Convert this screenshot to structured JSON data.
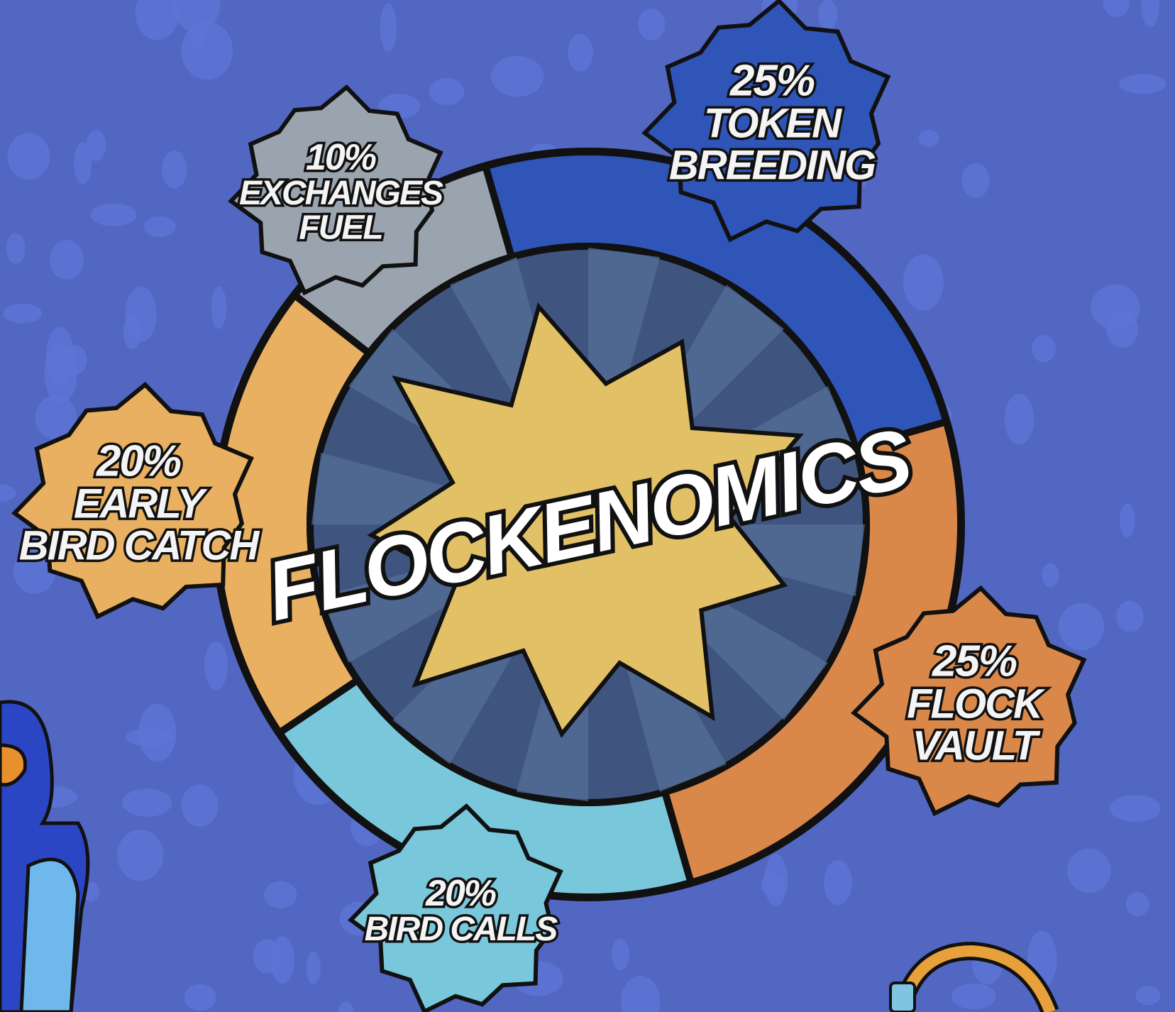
{
  "chart_data": {
    "type": "pie",
    "variant": "donut",
    "title": "FLOCKENOMICS",
    "series": [
      {
        "pct_label": "25%",
        "name": "TOKEN BREEDING",
        "lines": [
          "TOKEN",
          "BREEDING"
        ],
        "value": 25,
        "color": "#2f55b8"
      },
      {
        "pct_label": "25%",
        "name": "FLOCK VAULT",
        "lines": [
          "FLOCK",
          "VAULT"
        ],
        "value": 25,
        "color": "#d9884a"
      },
      {
        "pct_label": "20%",
        "name": "BIRD CALLS",
        "lines": [
          "BIRD CALLS"
        ],
        "value": 20,
        "color": "#79c7db"
      },
      {
        "pct_label": "20%",
        "name": "EARLY BIRD CATCH",
        "lines": [
          "EARLY",
          "BIRD CATCH"
        ],
        "value": 20,
        "color": "#e8b060"
      },
      {
        "pct_label": "10%",
        "name": "EXCHANGES FUEL",
        "lines": [
          "EXCHANGES",
          "FUEL"
        ],
        "value": 10,
        "color": "#9aa4ae"
      }
    ]
  },
  "colors": {
    "background": "#5267c2",
    "center": "#3f5580",
    "burst": "#e2c066"
  }
}
